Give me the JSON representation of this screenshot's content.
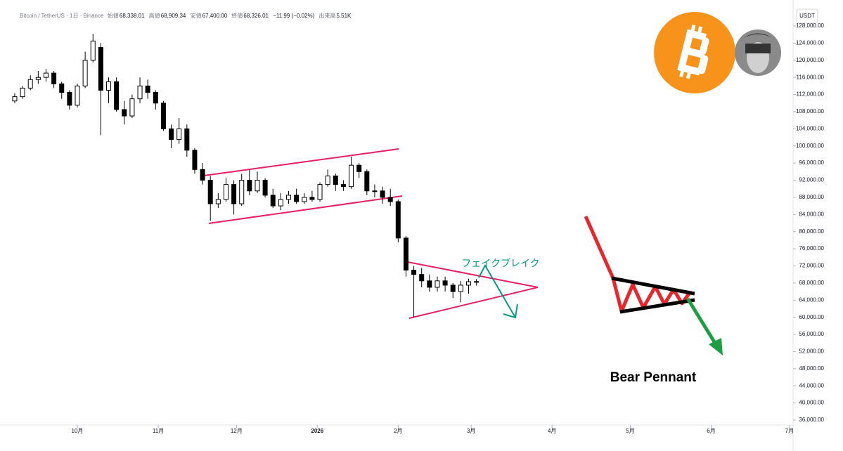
{
  "header": {
    "symbol": "Bitcoin / TetherUS · 1日 · Binance",
    "open_label": "始値",
    "open": "68,338.01",
    "high_label": "高値",
    "high": "68,909.34",
    "low_label": "安値",
    "low": "67,400.00",
    "close_label": "終値",
    "close": "68,326.01",
    "change": "−11.99 (−0.02%)",
    "volume_label": "出来高",
    "volume": "5.51K"
  },
  "chart_data": {
    "type": "candlestick",
    "currency": "USDT",
    "annotations": [
      "フェイクブレイク",
      "Bear Pennant"
    ],
    "up_color": "#ffffff",
    "down_color": "#000000",
    "outline_color": "#000000",
    "x": [
      -24,
      -21,
      -18,
      -15,
      -12,
      -9,
      -6,
      -3,
      0,
      3,
      6,
      9,
      12,
      15,
      18,
      21,
      24,
      27,
      30,
      33,
      36,
      39,
      42,
      45,
      48,
      51,
      54,
      57,
      60,
      63,
      66,
      69,
      72,
      75,
      78,
      81,
      84,
      87,
      90,
      93,
      96,
      99,
      102,
      105,
      108,
      111,
      114,
      117,
      120,
      123,
      126,
      129,
      132,
      135,
      138,
      141,
      144,
      147,
      150,
      153
    ],
    "candles": [
      [
        110500,
        112300,
        110000,
        111500
      ],
      [
        111500,
        114000,
        111000,
        113500
      ],
      [
        113500,
        116500,
        113000,
        115500
      ],
      [
        115500,
        117500,
        114500,
        116000
      ],
      [
        116000,
        118000,
        115000,
        117000
      ],
      [
        117000,
        117500,
        113500,
        114500
      ],
      [
        114500,
        115000,
        111000,
        112500
      ],
      [
        112500,
        113000,
        108500,
        109500
      ],
      [
        109500,
        114500,
        109000,
        114000
      ],
      [
        114000,
        122000,
        113500,
        120000
      ],
      [
        120000,
        126200,
        119500,
        124500
      ],
      [
        123000,
        124000,
        102500,
        113000
      ],
      [
        113000,
        116000,
        110000,
        115000
      ],
      [
        115000,
        116000,
        108000,
        108500
      ],
      [
        108500,
        110500,
        105000,
        107000
      ],
      [
        107000,
        112000,
        106500,
        111000
      ],
      [
        111000,
        116000,
        110000,
        114000
      ],
      [
        114000,
        115500,
        111000,
        112500
      ],
      [
        112500,
        113000,
        108500,
        110000
      ],
      [
        110000,
        110500,
        103500,
        104000
      ],
      [
        104000,
        105000,
        99500,
        101500
      ],
      [
        101500,
        106500,
        100500,
        104000
      ],
      [
        104000,
        105000,
        97500,
        99000
      ],
      [
        99000,
        99500,
        93500,
        94500
      ],
      [
        94500,
        96000,
        91000,
        92000
      ],
      [
        92000,
        93000,
        82500,
        86500
      ],
      [
        86500,
        89000,
        85500,
        87500
      ],
      [
        87500,
        92500,
        87000,
        91000
      ],
      [
        91000,
        92000,
        84000,
        86500
      ],
      [
        86500,
        93500,
        86000,
        92000
      ],
      [
        92000,
        94500,
        88500,
        89500
      ],
      [
        89500,
        94000,
        89000,
        92000
      ],
      [
        92000,
        92500,
        88000,
        88500
      ],
      [
        88500,
        90000,
        85500,
        86000
      ],
      [
        86000,
        89000,
        85000,
        87500
      ],
      [
        87500,
        89500,
        86500,
        88500
      ],
      [
        88500,
        90000,
        86500,
        87000
      ],
      [
        87000,
        89000,
        86500,
        88000
      ],
      [
        88000,
        89500,
        87000,
        87500
      ],
      [
        87500,
        91500,
        87000,
        91000
      ],
      [
        91000,
        94500,
        90500,
        93000
      ],
      [
        93000,
        93500,
        89500,
        91000
      ],
      [
        91000,
        92000,
        89500,
        90500
      ],
      [
        90500,
        97500,
        90000,
        95500
      ],
      [
        95500,
        96000,
        92500,
        94000
      ],
      [
        94000,
        94500,
        88500,
        89500
      ],
      [
        89500,
        91000,
        88000,
        89500
      ],
      [
        89500,
        90500,
        86500,
        88000
      ],
      [
        88000,
        90000,
        86000,
        87000
      ],
      [
        87000,
        87500,
        77500,
        78500
      ],
      [
        78500,
        79000,
        69500,
        71000
      ],
      [
        71000,
        72000,
        60000,
        70000
      ],
      [
        70000,
        71500,
        67000,
        68500
      ],
      [
        68500,
        70000,
        66000,
        67000
      ],
      [
        67000,
        69500,
        66000,
        68500
      ],
      [
        68500,
        69500,
        66000,
        67500
      ],
      [
        67500,
        68000,
        64500,
        66000
      ],
      [
        66000,
        68500,
        63500,
        67500
      ],
      [
        67500,
        69000,
        65500,
        68300
      ],
      [
        68338.01,
        68909.34,
        67400,
        68326.01
      ]
    ],
    "xlim": [
      -29.65,
      274.4
    ],
    "xticks": [
      {
        "value": 0,
        "label": "10月"
      },
      {
        "value": 31,
        "label": "11月"
      },
      {
        "value": 61,
        "label": "12月"
      },
      {
        "value": 92,
        "label": "2026"
      },
      {
        "value": 123,
        "label": "2月"
      },
      {
        "value": 151,
        "label": "3月"
      },
      {
        "value": 182,
        "label": "4月"
      },
      {
        "value": 212,
        "label": "5月"
      },
      {
        "value": 243,
        "label": "6月"
      },
      {
        "value": 273,
        "label": "7月"
      }
    ],
    "ylim": [
      34850,
      134070
    ],
    "yticks": [
      {
        "value": 128000,
        "label": "128,000.00"
      },
      {
        "value": 124000,
        "label": "124,000.00"
      },
      {
        "value": 120000,
        "label": "120,000.00"
      },
      {
        "value": 116000,
        "label": "116,000.00"
      },
      {
        "value": 112000,
        "label": "112,000.00"
      },
      {
        "value": 108000,
        "label": "108,000.00"
      },
      {
        "value": 104000,
        "label": "104,000.00"
      },
      {
        "value": 100000,
        "label": "100,000.00"
      },
      {
        "value": 96000,
        "label": "96,000.00"
      },
      {
        "value": 92000,
        "label": "92,000.00"
      },
      {
        "value": 88000,
        "label": "88,000.00"
      },
      {
        "value": 84000,
        "label": "84,000.00"
      },
      {
        "value": 80000,
        "label": "80,000.00"
      },
      {
        "value": 76000,
        "label": "76,000.00"
      },
      {
        "value": 72000,
        "label": "72,000.00"
      },
      {
        "value": 68000,
        "label": "68,000.00"
      },
      {
        "value": 64000,
        "label": "64,000.00"
      },
      {
        "value": 60000,
        "label": "60,000.00"
      },
      {
        "value": 56000,
        "label": "56,000.00"
      },
      {
        "value": 52000,
        "label": "52,000.00"
      },
      {
        "value": 48000,
        "label": "48,000.00"
      },
      {
        "value": 44000,
        "label": "44,000.00"
      },
      {
        "value": 40000,
        "label": "40,000.00"
      },
      {
        "value": 36000,
        "label": "36,000.00"
      }
    ],
    "grid": false
  }
}
